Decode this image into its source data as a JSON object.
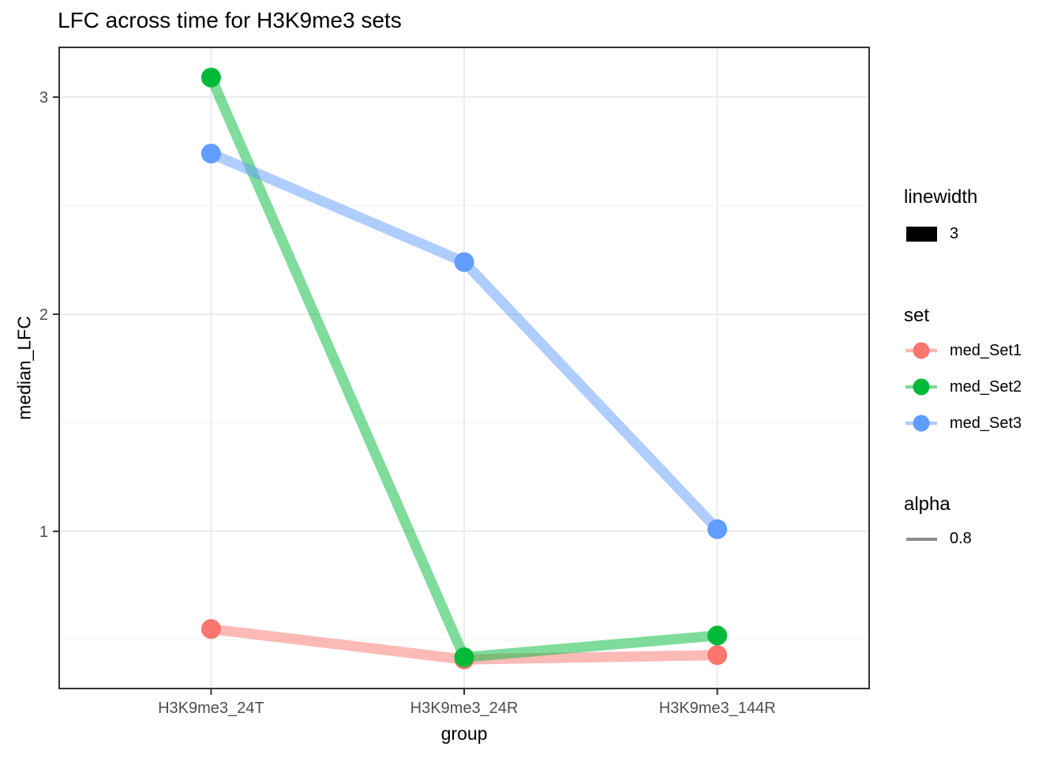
{
  "chart_data": {
    "type": "line",
    "title": "LFC across time for H3K9me3 sets",
    "xlabel": "group",
    "ylabel": "median_LFC",
    "categories": [
      "H3K9me3_24T",
      "H3K9me3_24R",
      "H3K9me3_144R"
    ],
    "series": [
      {
        "name": "med_Set1",
        "color": "#F8766D",
        "values": [
          0.55,
          0.41,
          0.43
        ]
      },
      {
        "name": "med_Set2",
        "color": "#00BA38",
        "values": [
          3.09,
          0.42,
          0.52
        ]
      },
      {
        "name": "med_Set3",
        "color": "#619CFF",
        "values": [
          2.74,
          2.24,
          1.01
        ]
      }
    ],
    "y_ticks": [
      1,
      2,
      3
    ],
    "y_minor_ticks": [
      0.5,
      1.5,
      2.5
    ],
    "ylim": [
      0.276,
      3.229
    ],
    "line_alpha": 0.5,
    "grid": true,
    "legend_position": "right"
  },
  "legend": {
    "linewidth": {
      "title": "linewidth",
      "value": "3"
    },
    "set_title": "set",
    "alpha": {
      "title": "alpha",
      "value": "0.8"
    }
  },
  "colors": {
    "grid_major": "#EBEBEB",
    "grid_minor": "#F5F5F5",
    "panel_border": "#333333",
    "tick_mark": "#333333",
    "tick_label": "#4D4D4D",
    "alpha_key_line": "#8C8C8C"
  }
}
